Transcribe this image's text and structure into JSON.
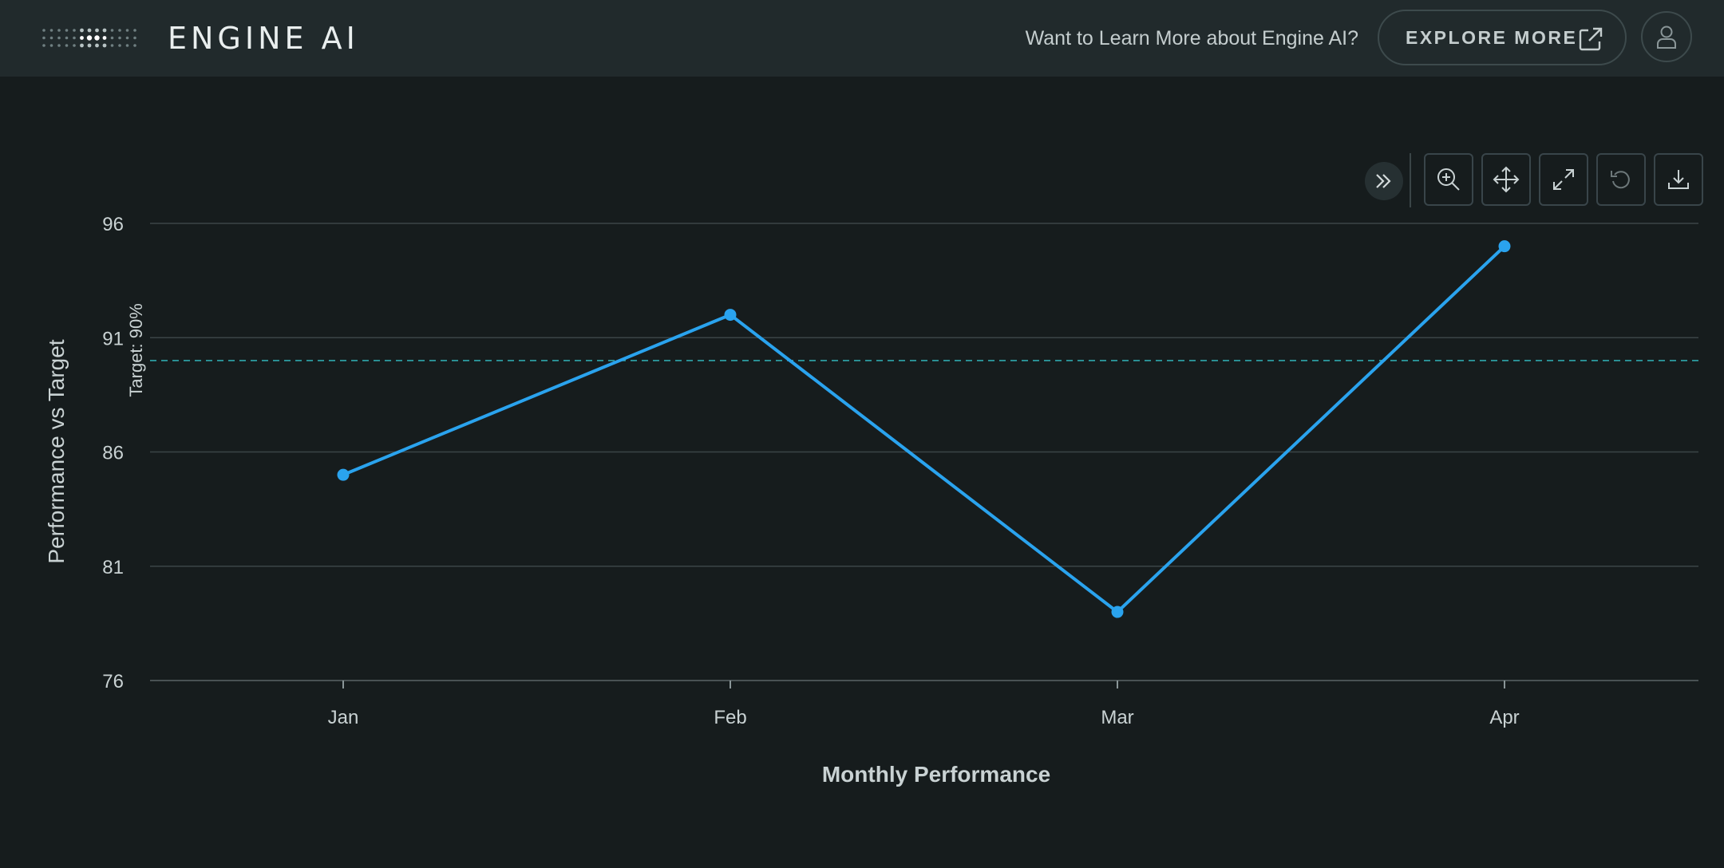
{
  "header": {
    "brand": "ENGINE AI",
    "learn_more": "Want to Learn More about Engine AI?",
    "explore_label": "EXPLORE MORE"
  },
  "toolbar": {
    "tools": [
      "collapse",
      "zoom-in",
      "pan",
      "expand",
      "reset",
      "download"
    ]
  },
  "colors": {
    "series": "#2aa3ee",
    "target": "#2fa8ad",
    "background": "#161c1d",
    "header": "#212a2c"
  },
  "chart_data": {
    "type": "line",
    "categories": [
      "Jan",
      "Feb",
      "Mar",
      "Apr"
    ],
    "series": [
      {
        "values": [
          85,
          92,
          79,
          95
        ]
      }
    ],
    "xlabel": "Monthly Performance",
    "ylabel": "Performance vs Target",
    "ylim": [
      76,
      96
    ],
    "yticks": [
      76,
      81,
      86,
      91,
      96
    ],
    "grid": true,
    "annotations": [
      {
        "type": "hline",
        "value": 90,
        "label": "Target: 90%",
        "style": "dashed"
      }
    ]
  }
}
